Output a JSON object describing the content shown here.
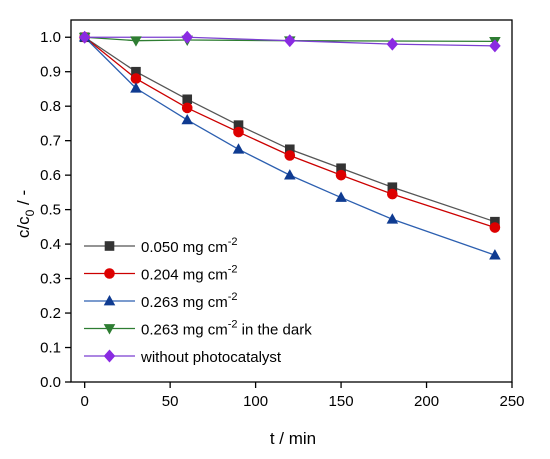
{
  "chart_data": {
    "type": "line",
    "title": "",
    "xlabel": "t / min",
    "ylabel_parts": {
      "base": "c/c",
      "sub": "0",
      "suffix": " / -"
    },
    "xlim": [
      -8,
      250
    ],
    "ylim": [
      0,
      1.05
    ],
    "xticks": [
      0,
      50,
      100,
      150,
      200,
      250
    ],
    "yticks": [
      0.0,
      0.1,
      0.2,
      0.3,
      0.4,
      0.5,
      0.6,
      0.7,
      0.8,
      0.9,
      1.0
    ],
    "xtick_labels": [
      "0",
      "50",
      "100",
      "150",
      "200",
      "250"
    ],
    "ytick_labels": [
      "0.0",
      "0.1",
      "0.2",
      "0.3",
      "0.4",
      "0.5",
      "0.6",
      "0.7",
      "0.8",
      "0.9",
      "1.0"
    ],
    "grid": false,
    "legend_position": "bottom-left",
    "series": [
      {
        "name_parts": {
          "main": "0.050 mg cm",
          "sup": "-2",
          "tail": ""
        },
        "marker": "square",
        "marker_color": "#333333",
        "line_color": "#555555",
        "x": [
          0,
          30,
          60,
          90,
          120,
          150,
          180,
          240
        ],
        "y": [
          1.0,
          0.9,
          0.82,
          0.745,
          0.675,
          0.62,
          0.565,
          0.465
        ]
      },
      {
        "name_parts": {
          "main": "0.204 mg cm",
          "sup": "-2",
          "tail": ""
        },
        "marker": "circle",
        "marker_color": "#dd0000",
        "line_color": "#cc0000",
        "x": [
          0,
          30,
          60,
          90,
          120,
          150,
          180,
          240
        ],
        "y": [
          1.0,
          0.88,
          0.795,
          0.725,
          0.657,
          0.6,
          0.545,
          0.448
        ]
      },
      {
        "name_parts": {
          "main": "0.263 mg cm",
          "sup": "-2",
          "tail": ""
        },
        "marker": "triangle-up",
        "marker_color": "#0f3b91",
        "line_color": "#2c5fb0",
        "x": [
          0,
          30,
          60,
          90,
          120,
          150,
          180,
          240
        ],
        "y": [
          1.0,
          0.852,
          0.76,
          0.675,
          0.6,
          0.535,
          0.472,
          0.368
        ]
      },
      {
        "name_parts": {
          "main": "0.263 mg cm",
          "sup": "-2",
          "tail": " in the dark"
        },
        "marker": "triangle-down",
        "marker_color": "#2e7d32",
        "line_color": "#2e7d32",
        "x": [
          0,
          30,
          60,
          120,
          240
        ],
        "y": [
          1.0,
          0.99,
          0.992,
          0.99,
          0.988
        ]
      },
      {
        "name_parts": {
          "main": "without photocatalyst",
          "sup": "",
          "tail": ""
        },
        "marker": "diamond",
        "marker_color": "#8a2be2",
        "line_color": "#7b3fd0",
        "x": [
          0,
          60,
          120,
          180,
          240
        ],
        "y": [
          1.0,
          1.0,
          0.99,
          0.98,
          0.975
        ]
      }
    ]
  }
}
